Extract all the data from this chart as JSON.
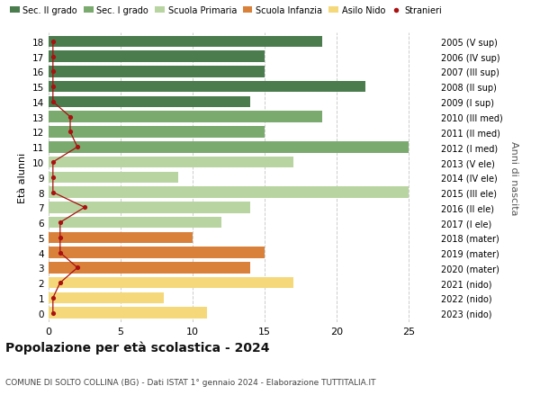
{
  "ages": [
    18,
    17,
    16,
    15,
    14,
    13,
    12,
    11,
    10,
    9,
    8,
    7,
    6,
    5,
    4,
    3,
    2,
    1,
    0
  ],
  "years": [
    "2005 (V sup)",
    "2006 (IV sup)",
    "2007 (III sup)",
    "2008 (II sup)",
    "2009 (I sup)",
    "2010 (III med)",
    "2011 (II med)",
    "2012 (I med)",
    "2013 (V ele)",
    "2014 (IV ele)",
    "2015 (III ele)",
    "2016 (II ele)",
    "2017 (I ele)",
    "2018 (mater)",
    "2019 (mater)",
    "2020 (mater)",
    "2021 (nido)",
    "2022 (nido)",
    "2023 (nido)"
  ],
  "bar_values": [
    19,
    15,
    15,
    22,
    14,
    19,
    15,
    25,
    17,
    9,
    25,
    14,
    12,
    10,
    15,
    14,
    17,
    8,
    11
  ],
  "bar_colors": [
    "#4a7c4e",
    "#4a7c4e",
    "#4a7c4e",
    "#4a7c4e",
    "#4a7c4e",
    "#7aaa6e",
    "#7aaa6e",
    "#7aaa6e",
    "#b8d4a0",
    "#b8d4a0",
    "#b8d4a0",
    "#b8d4a0",
    "#b8d4a0",
    "#d9813a",
    "#d9813a",
    "#d9813a",
    "#f5d87a",
    "#f5d87a",
    "#f5d87a"
  ],
  "stranieri_values": [
    0.3,
    0.3,
    0.3,
    0.3,
    0.3,
    1.5,
    1.5,
    2.0,
    0.3,
    0.3,
    0.3,
    2.5,
    0.8,
    0.8,
    0.8,
    2.0,
    0.8,
    0.3,
    0.3
  ],
  "legend_labels": [
    "Sec. II grado",
    "Sec. I grado",
    "Scuola Primaria",
    "Scuola Infanzia",
    "Asilo Nido",
    "Stranieri"
  ],
  "legend_colors": [
    "#4a7c4e",
    "#7aaa6e",
    "#b8d4a0",
    "#d9813a",
    "#f5d87a",
    "#aa1111"
  ],
  "title": "Popolazione per età scolastica - 2024",
  "subtitle": "COMUNE DI SOLTO COLLINA (BG) - Dati ISTAT 1° gennaio 2024 - Elaborazione TUTTITALIA.IT",
  "ylabel": "Età alunni",
  "ylabel2": "Anni di nascita",
  "xlim": [
    0,
    27
  ],
  "xticks": [
    0,
    5,
    10,
    15,
    20,
    25
  ],
  "background_color": "#ffffff",
  "bar_height": 0.75,
  "stranieri_color": "#aa1111",
  "stranieri_line_color": "#aa1111"
}
